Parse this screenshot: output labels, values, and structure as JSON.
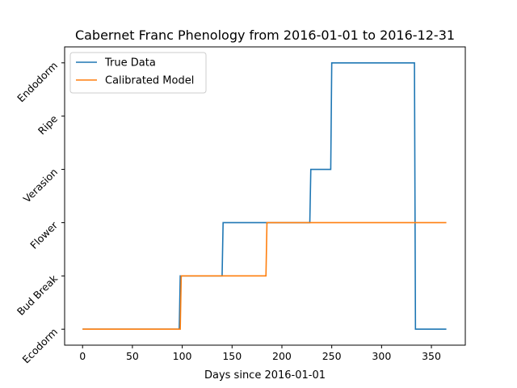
{
  "chart_data": {
    "type": "line",
    "title": "Cabernet Franc Phenology from 2016-01-01 to 2016-12-31",
    "xlabel": "Days since 2016-01-01",
    "ylabel": "",
    "xlim": [
      -18,
      384
    ],
    "ylim": [
      -0.3,
      5.3
    ],
    "xticks": [
      0,
      50,
      100,
      150,
      200,
      250,
      300,
      350
    ],
    "yticks": [
      {
        "value": 0,
        "label": "Ecodorm"
      },
      {
        "value": 1,
        "label": "Bud Break"
      },
      {
        "value": 2,
        "label": "Flower"
      },
      {
        "value": 3,
        "label": "Verasion"
      },
      {
        "value": 4,
        "label": "Ripe"
      },
      {
        "value": 5,
        "label": "Endodorm"
      }
    ],
    "grid": false,
    "legend_position": "top-left",
    "series": [
      {
        "name": "True Data",
        "color": "#1f77b4",
        "points": [
          [
            0,
            0
          ],
          [
            97,
            0
          ],
          [
            98,
            1
          ],
          [
            140,
            1
          ],
          [
            141,
            2
          ],
          [
            228,
            2
          ],
          [
            229,
            3
          ],
          [
            249,
            3
          ],
          [
            250,
            5
          ],
          [
            333,
            5
          ],
          [
            334,
            0
          ],
          [
            365,
            0
          ]
        ]
      },
      {
        "name": "Calibrated Model",
        "color": "#ff7f0e",
        "points": [
          [
            0,
            0
          ],
          [
            98,
            0
          ],
          [
            99,
            1
          ],
          [
            184,
            1
          ],
          [
            185,
            2
          ],
          [
            365,
            2
          ]
        ]
      }
    ]
  }
}
